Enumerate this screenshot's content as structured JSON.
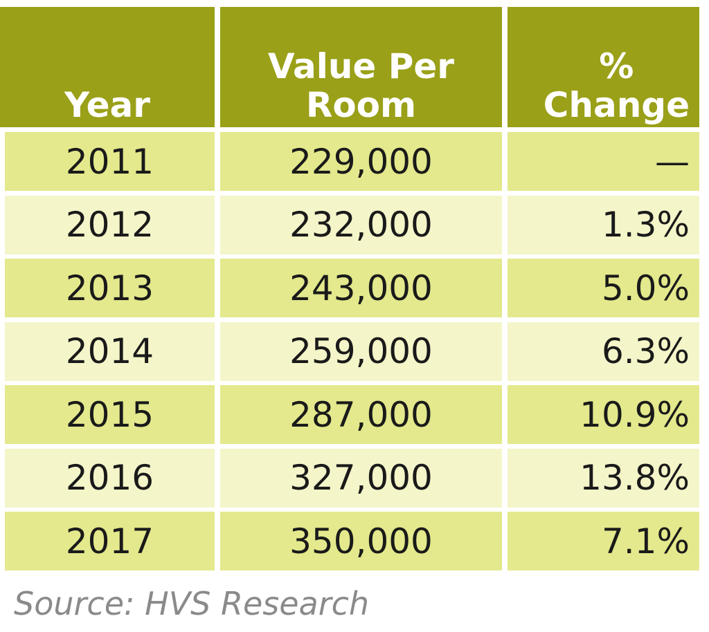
{
  "chart_data": {
    "type": "table",
    "columns": [
      "Year",
      "Value Per Room",
      "% Change"
    ],
    "rows": [
      [
        "2011",
        "229,000",
        "—"
      ],
      [
        "2012",
        "232,000",
        "1.3%"
      ],
      [
        "2013",
        "243,000",
        "5.0%"
      ],
      [
        "2014",
        "259,000",
        "6.3%"
      ],
      [
        "2015",
        "287,000",
        "10.9%"
      ],
      [
        "2016",
        "327,000",
        "13.8%"
      ],
      [
        "2017",
        "350,000",
        "7.1%"
      ]
    ],
    "source": "Source: HVS Research",
    "colors": {
      "header": "#9aa018",
      "row_dark": "#e3e98c",
      "row_light": "#f4f5c9"
    }
  }
}
